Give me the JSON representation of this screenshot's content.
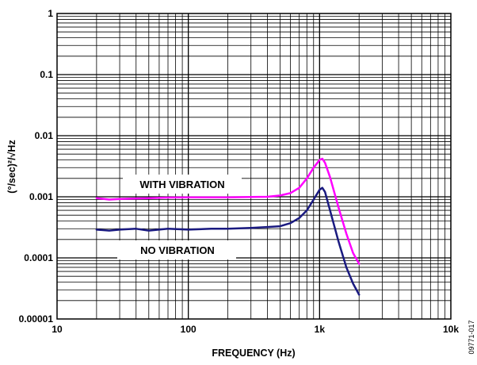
{
  "chart_data": {
    "type": "line",
    "xlabel": "FREQUENCY (Hz)",
    "ylabel": "(°/sec)²/√Hz",
    "x_scale": "log",
    "y_scale": "log",
    "xlim": [
      10,
      10000
    ],
    "ylim": [
      1e-05,
      1
    ],
    "x_ticks": [
      {
        "value": 10,
        "label": "10"
      },
      {
        "value": 100,
        "label": "100"
      },
      {
        "value": 1000,
        "label": "1k"
      },
      {
        "value": 10000,
        "label": "10k"
      }
    ],
    "y_ticks": [
      {
        "value": 1,
        "label": "1"
      },
      {
        "value": 0.1,
        "label": "0.1"
      },
      {
        "value": 0.01,
        "label": "0.01"
      },
      {
        "value": 0.001,
        "label": "0.001"
      },
      {
        "value": 0.0001,
        "label": "0.0001"
      },
      {
        "value": 1e-05,
        "label": "0.00001"
      }
    ],
    "grid": true,
    "series": [
      {
        "name": "WITH VIBRATION",
        "color": "#ff00ff",
        "x": [
          20,
          25,
          30,
          40,
          50,
          70,
          100,
          150,
          200,
          300,
          400,
          500,
          600,
          700,
          800,
          900,
          1000,
          1050,
          1100,
          1200,
          1400,
          1600,
          1800,
          2000
        ],
        "y": [
          0.00095,
          0.0009,
          0.00092,
          0.00094,
          0.00095,
          0.00097,
          0.00098,
          0.00098,
          0.00098,
          0.00099,
          0.001,
          0.00105,
          0.00115,
          0.0014,
          0.002,
          0.003,
          0.004,
          0.0042,
          0.0036,
          0.0021,
          0.00065,
          0.00025,
          0.00012,
          8e-05
        ]
      },
      {
        "name": "NO VIBRATION",
        "color": "#1a1a80",
        "x": [
          20,
          25,
          30,
          40,
          50,
          70,
          100,
          150,
          200,
          300,
          400,
          500,
          600,
          700,
          800,
          900,
          1000,
          1050,
          1100,
          1200,
          1400,
          1600,
          1800,
          2000
        ],
        "y": [
          0.00029,
          0.00028,
          0.00029,
          0.0003,
          0.00028,
          0.0003,
          0.00029,
          0.0003,
          0.0003,
          0.00031,
          0.00032,
          0.00033,
          0.00037,
          0.00045,
          0.0006,
          0.0009,
          0.0013,
          0.0014,
          0.0012,
          0.0006,
          0.00018,
          7e-05,
          3.8e-05,
          2.5e-05
        ]
      }
    ],
    "annotations": [
      {
        "text": "WITH VIBRATION"
      },
      {
        "text": "NO VIBRATION"
      }
    ]
  },
  "figure_code": "09771-017"
}
